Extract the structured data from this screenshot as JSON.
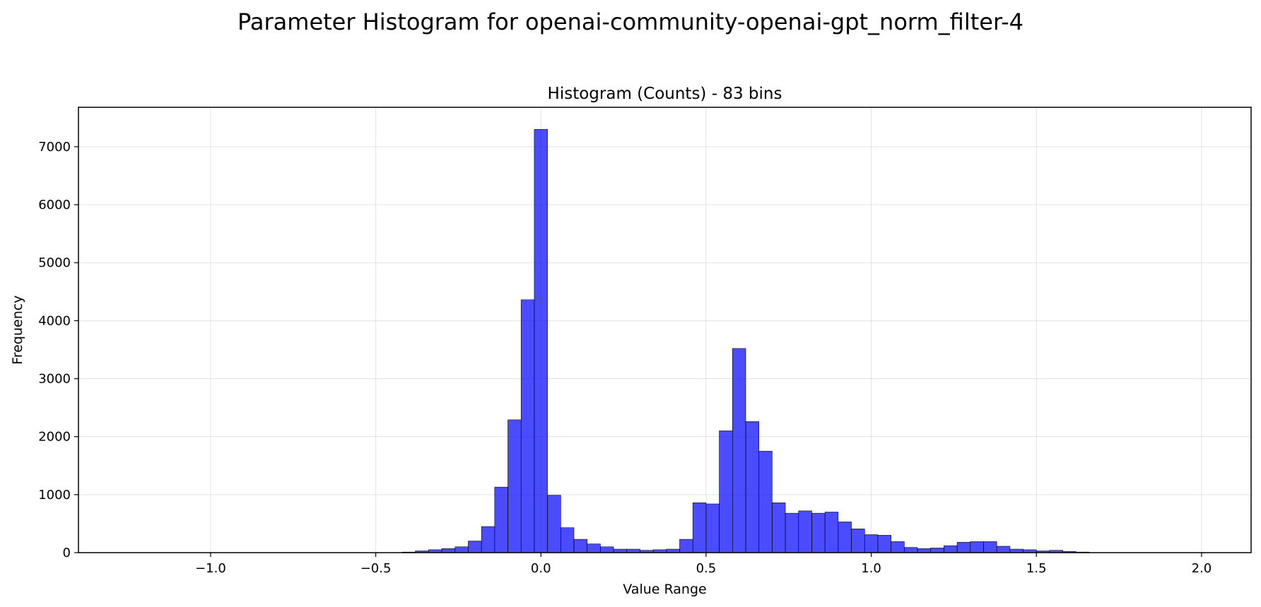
{
  "figure": {
    "suptitle": "Parameter Histogram for openai-community-openai-gpt_norm_filter-4"
  },
  "chart_data": {
    "type": "bar",
    "title": "Histogram (Counts) - 83 bins",
    "xlabel": "Value Range",
    "ylabel": "Frequency",
    "xlim": [
      -1.4,
      2.15
    ],
    "ylim": [
      0,
      7680
    ],
    "xticks": [
      -1.0,
      -0.5,
      0.0,
      0.5,
      1.0,
      1.5,
      2.0
    ],
    "xtick_labels": [
      "−1.0",
      "−0.5",
      "0.0",
      "0.5",
      "1.0",
      "1.5",
      "2.0"
    ],
    "yticks": [
      0,
      1000,
      2000,
      3000,
      4000,
      5000,
      6000,
      7000
    ],
    "ytick_labels": [
      "0",
      "1000",
      "2000",
      "3000",
      "4000",
      "5000",
      "6000",
      "7000"
    ],
    "grid": true,
    "bar_color": "#0000ff",
    "bar_alpha": 0.7,
    "edge_color": "#000000",
    "bin_start": -1.3,
    "bin_width": 0.04,
    "values": [
      0,
      0,
      0,
      0,
      0,
      0,
      0,
      0,
      0,
      0,
      0,
      0,
      0,
      0,
      0,
      0,
      0,
      0,
      0,
      0,
      0,
      0,
      10,
      30,
      50,
      70,
      100,
      200,
      450,
      1130,
      2290,
      4360,
      7300,
      990,
      430,
      230,
      150,
      100,
      60,
      60,
      40,
      50,
      60,
      230,
      860,
      840,
      2100,
      3520,
      2260,
      1750,
      860,
      680,
      720,
      680,
      700,
      530,
      410,
      310,
      300,
      190,
      90,
      70,
      80,
      120,
      180,
      190,
      190,
      110,
      60,
      50,
      30,
      40,
      20,
      10,
      0,
      0,
      0,
      0,
      0,
      0,
      0,
      0,
      0
    ]
  }
}
